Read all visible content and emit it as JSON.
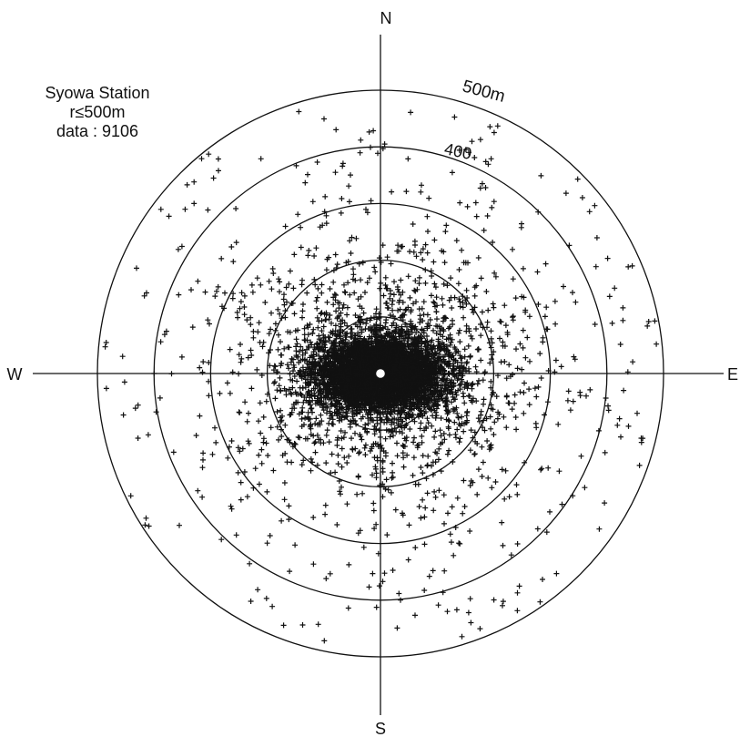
{
  "chart_data": {
    "type": "scatter",
    "title": "Syowa Station",
    "subtitle": "r≤500m",
    "data_count_label": "data : 9106",
    "projection": "polar",
    "directions": {
      "north": "N",
      "south": "S",
      "east": "E",
      "west": "W"
    },
    "range_rings_m": [
      100,
      200,
      300,
      400,
      500
    ],
    "ring_labels": [
      {
        "ring_m": 500,
        "text": "500m"
      },
      {
        "ring_m": 400,
        "text": "400"
      }
    ],
    "r_max_m": 500,
    "center_marker": "circle",
    "point_count": 9106,
    "distribution": {
      "core_radius_m": 100,
      "core_elongation": "east-west",
      "sparse_tail_to_m": 500
    }
  },
  "colors": {
    "ink": "#111111",
    "background": "#ffffff"
  }
}
